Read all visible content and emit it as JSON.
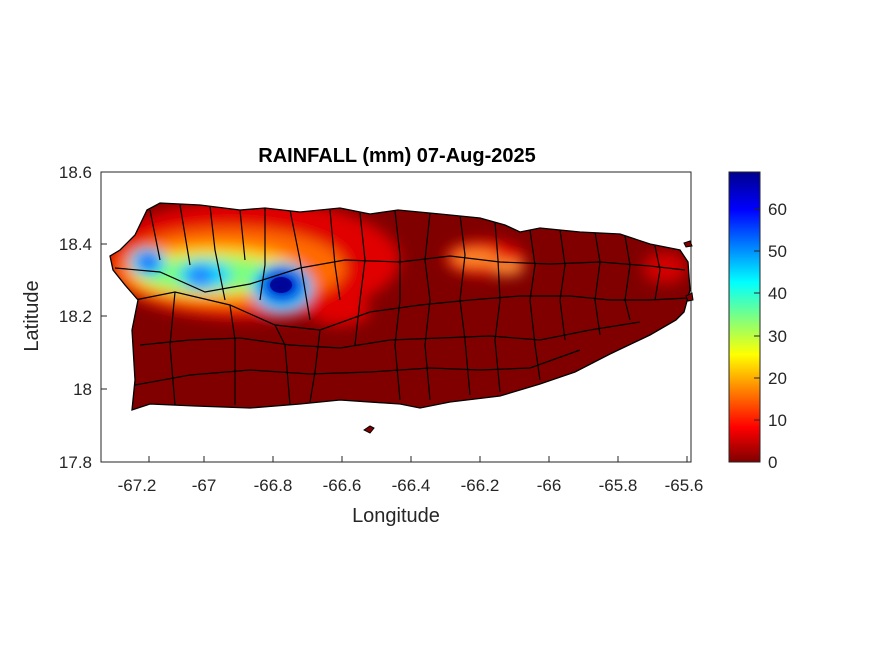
{
  "title": "RAINFALL (mm) 07-Aug-2025",
  "xlabel": "Longitude",
  "ylabel": "Latitude",
  "x_ticks": [
    "-67.2",
    "-67",
    "-66.8",
    "-66.6",
    "-66.4",
    "-66.2",
    "-66",
    "-65.8",
    "-65.6"
  ],
  "y_ticks": [
    "18.6",
    "18.4",
    "18.2",
    "18",
    "17.8"
  ],
  "colorbar_ticks": [
    "60",
    "50",
    "40",
    "30",
    "20",
    "10",
    "0"
  ],
  "colors": {
    "background_rain": "#800000",
    "boundaries": "#000000",
    "max_rain": "#00008f"
  },
  "chart_data": {
    "type": "heatmap",
    "title": "RAINFALL (mm) 07-Aug-2025",
    "xlabel": "Longitude",
    "ylabel": "Latitude",
    "xlim": [
      -67.3,
      -65.58
    ],
    "ylim": [
      17.8,
      18.6
    ],
    "colorbar": {
      "min": 0,
      "max": 69,
      "colormap": "jet"
    },
    "rain_cells": [
      {
        "lon": -66.79,
        "lat": 18.29,
        "mm": 69
      },
      {
        "lon": -67.17,
        "lat": 18.34,
        "mm": 48
      },
      {
        "lon": -67.0,
        "lat": 18.31,
        "mm": 42
      },
      {
        "lon": -66.9,
        "lat": 18.33,
        "mm": 22
      },
      {
        "lon": -66.24,
        "lat": 18.36,
        "mm": 12
      },
      {
        "lon": -66.13,
        "lat": 18.34,
        "mm": 11
      },
      {
        "lon": -65.65,
        "lat": 18.37,
        "mm": 6
      }
    ]
  }
}
